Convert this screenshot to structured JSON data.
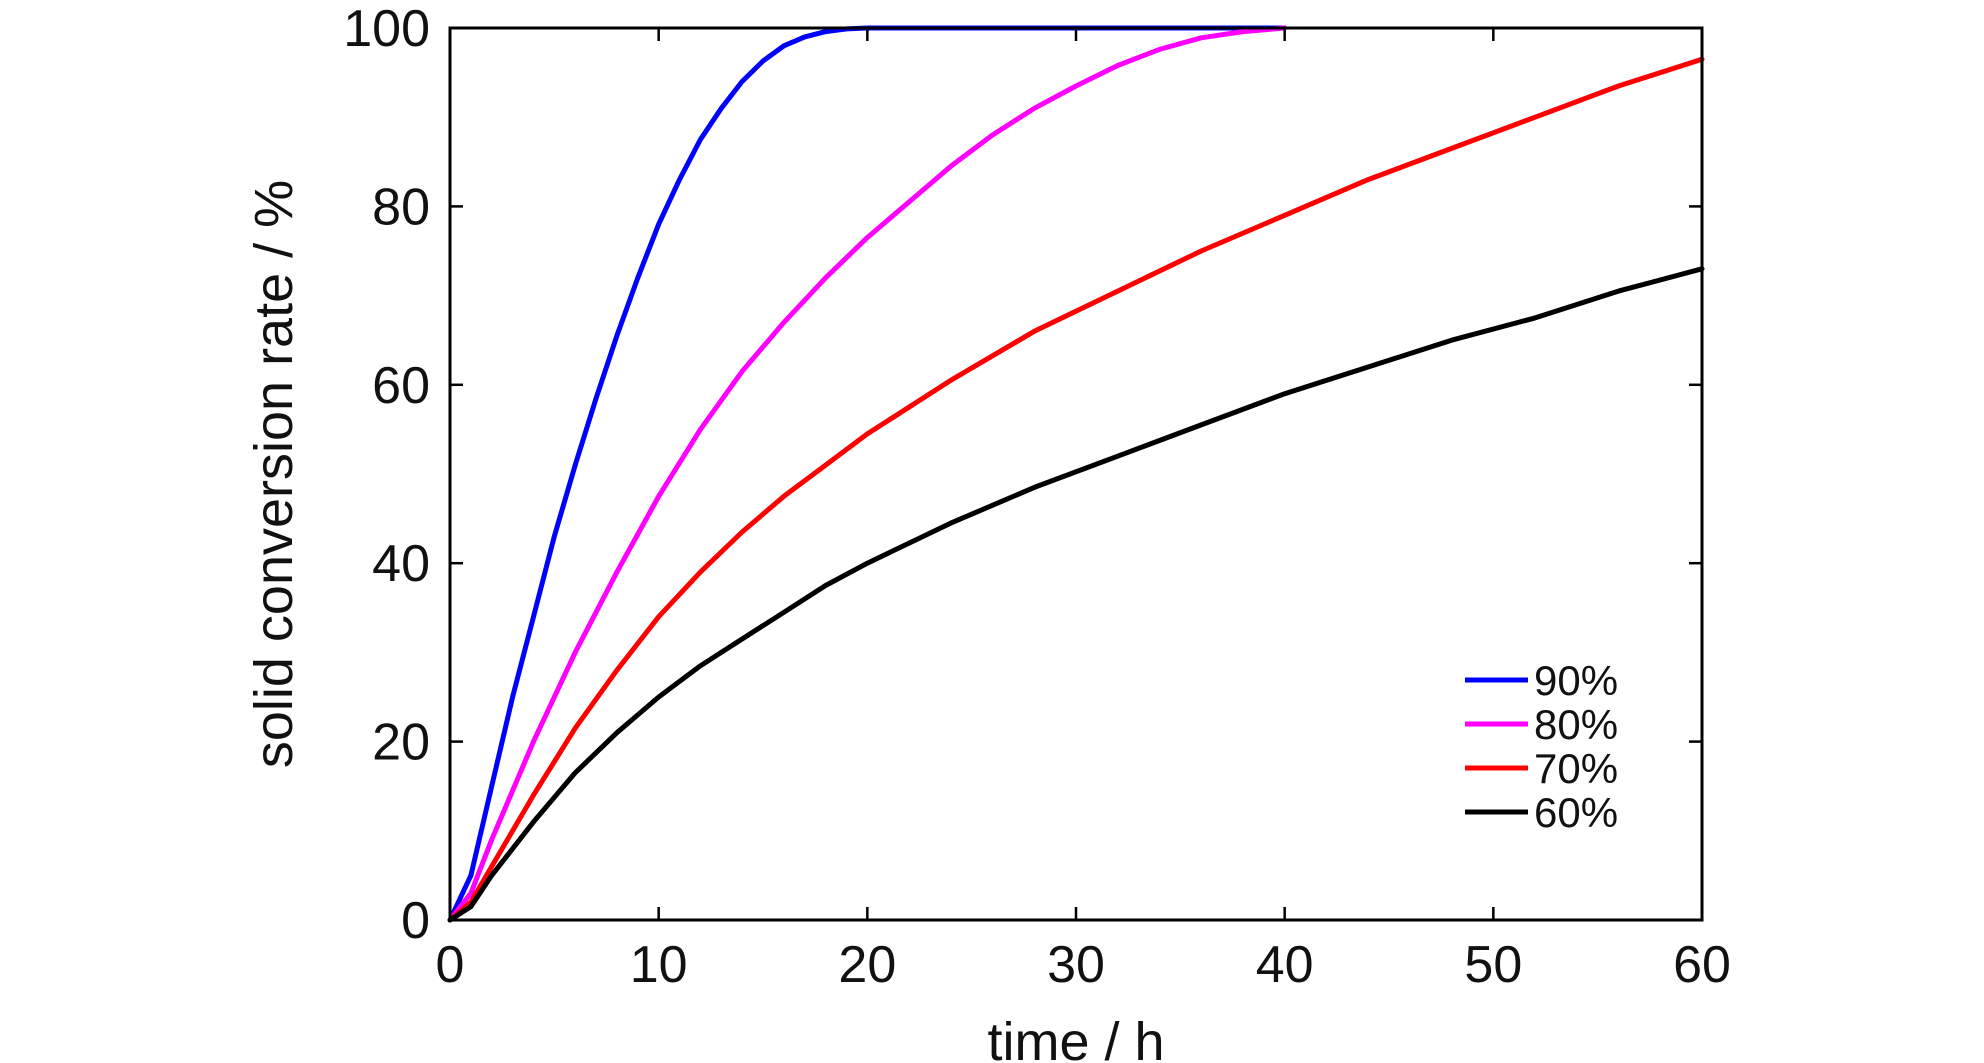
{
  "chart_data": {
    "type": "line",
    "title": "",
    "xlabel": "time / h",
    "ylabel": "solid conversion rate / %",
    "xlim": [
      0,
      60
    ],
    "ylim": [
      0,
      100
    ],
    "xticks": [
      0,
      10,
      20,
      30,
      40,
      50,
      60
    ],
    "yticks": [
      0,
      20,
      40,
      60,
      80,
      100
    ],
    "grid": false,
    "legend_position": "bottom-right",
    "series": [
      {
        "name": "90%",
        "color": "#0000ff",
        "x": [
          0,
          1,
          2,
          3,
          4,
          5,
          6,
          7,
          8,
          9,
          10,
          11,
          12,
          13,
          14,
          15,
          16,
          17,
          18,
          19,
          20,
          21,
          22,
          25,
          30,
          35,
          40
        ],
        "y": [
          0,
          5,
          15,
          25,
          34,
          43,
          51,
          58.5,
          65.5,
          72,
          78,
          83,
          87.5,
          91,
          94,
          96.3,
          98,
          99,
          99.6,
          99.9,
          100,
          100,
          100,
          100,
          100,
          100,
          100
        ]
      },
      {
        "name": "80%",
        "color": "#ff00ff",
        "x": [
          0,
          1,
          2,
          4,
          6,
          8,
          10,
          12,
          14,
          16,
          18,
          20,
          22,
          24,
          26,
          28,
          30,
          32,
          34,
          36,
          38,
          40
        ],
        "y": [
          0,
          3,
          9,
          20,
          30,
          39,
          47.5,
          55,
          61.5,
          67,
          72,
          76.5,
          80.5,
          84.5,
          88,
          91,
          93.5,
          95.8,
          97.6,
          98.9,
          99.6,
          100
        ]
      },
      {
        "name": "70%",
        "color": "#ff0000",
        "x": [
          0,
          1,
          2,
          4,
          6,
          8,
          10,
          12,
          14,
          16,
          18,
          20,
          24,
          28,
          32,
          36,
          40,
          44,
          48,
          52,
          56,
          60
        ],
        "y": [
          0,
          2,
          6,
          14,
          21.5,
          28,
          34,
          39,
          43.5,
          47.5,
          51,
          54.5,
          60.5,
          66,
          70.5,
          75,
          79,
          83,
          86.5,
          90,
          93.5,
          96.5
        ]
      },
      {
        "name": "60%",
        "color": "#000000",
        "x": [
          0,
          1,
          2,
          4,
          6,
          8,
          10,
          12,
          14,
          16,
          18,
          20,
          24,
          28,
          32,
          36,
          40,
          44,
          48,
          52,
          56,
          60
        ],
        "y": [
          0,
          1.5,
          5,
          11,
          16.5,
          21,
          25,
          28.5,
          31.5,
          34.5,
          37.5,
          40,
          44.5,
          48.5,
          52,
          55.5,
          59,
          62,
          65,
          67.5,
          70.5,
          73
        ]
      }
    ]
  }
}
